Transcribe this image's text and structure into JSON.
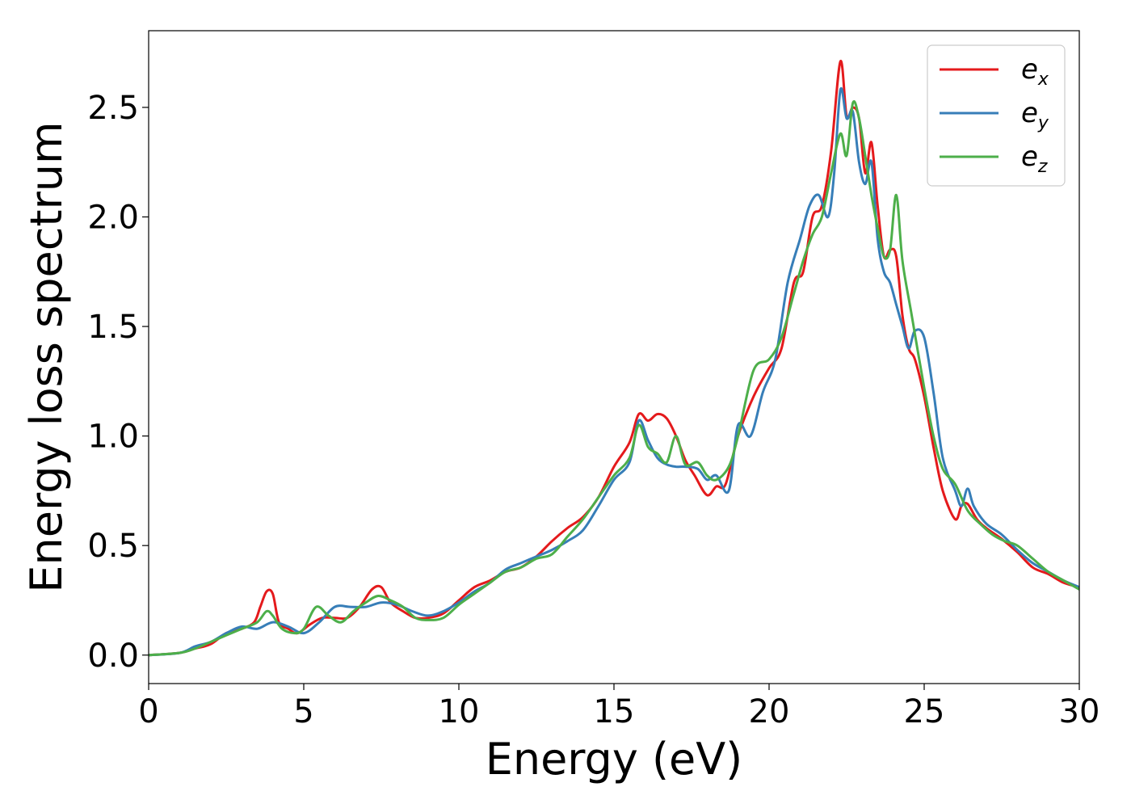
{
  "chart_data": {
    "type": "line",
    "title": "",
    "xlabel": "Energy (eV)",
    "ylabel": "Energy loss spectrum",
    "xlim": [
      0,
      30
    ],
    "ylim": [
      -0.13,
      2.85
    ],
    "xticks": [
      0,
      5,
      10,
      15,
      20,
      25,
      30
    ],
    "xtick_labels": [
      "0",
      "5",
      "10",
      "15",
      "20",
      "25",
      "30"
    ],
    "yticks": [
      0.0,
      0.5,
      1.0,
      1.5,
      2.0,
      2.5
    ],
    "ytick_labels": [
      "0.0",
      "0.5",
      "1.0",
      "1.5",
      "2.0",
      "2.5"
    ],
    "grid": false,
    "legend_position": "upper right",
    "series": [
      {
        "name": "e_x",
        "label_main": "e",
        "label_sub": "x",
        "color": "#e41a1c",
        "x": [
          0,
          1,
          1.5,
          2,
          2.5,
          3,
          3.4,
          3.6,
          3.8,
          4.0,
          4.2,
          4.5,
          4.8,
          5.2,
          5.6,
          6.0,
          6.4,
          6.8,
          7.2,
          7.5,
          7.8,
          8.2,
          8.6,
          9.0,
          9.5,
          10,
          10.5,
          11,
          11.5,
          12,
          12.5,
          13,
          13.5,
          14,
          14.5,
          15,
          15.5,
          15.8,
          16.1,
          16.4,
          16.7,
          17.0,
          17.3,
          17.6,
          18.0,
          18.3,
          18.6,
          19.0,
          19.5,
          20,
          20.4,
          20.8,
          21.1,
          21.4,
          21.7,
          22.0,
          22.3,
          22.5,
          22.7,
          22.9,
          23.1,
          23.3,
          23.5,
          23.7,
          23.9,
          24.1,
          24.3,
          24.5,
          24.7,
          25,
          25.3,
          25.6,
          26,
          26.2,
          26.4,
          26.7,
          27,
          27.5,
          28,
          28.5,
          29,
          29.5,
          30
        ],
        "y": [
          0,
          0.01,
          0.03,
          0.05,
          0.1,
          0.12,
          0.15,
          0.22,
          0.29,
          0.28,
          0.15,
          0.12,
          0.1,
          0.14,
          0.17,
          0.17,
          0.17,
          0.22,
          0.3,
          0.31,
          0.24,
          0.2,
          0.17,
          0.17,
          0.19,
          0.25,
          0.31,
          0.34,
          0.38,
          0.4,
          0.45,
          0.52,
          0.58,
          0.63,
          0.72,
          0.86,
          0.97,
          1.1,
          1.07,
          1.1,
          1.08,
          1.0,
          0.89,
          0.82,
          0.73,
          0.77,
          0.78,
          1.0,
          1.18,
          1.31,
          1.4,
          1.7,
          1.75,
          2.0,
          2.05,
          2.3,
          2.71,
          2.46,
          2.5,
          2.45,
          2.2,
          2.34,
          2.05,
          1.82,
          1.85,
          1.82,
          1.55,
          1.4,
          1.35,
          1.18,
          0.95,
          0.75,
          0.62,
          0.68,
          0.69,
          0.62,
          0.58,
          0.53,
          0.47,
          0.4,
          0.37,
          0.33,
          0.31
        ]
      },
      {
        "name": "e_y",
        "label_main": "e",
        "label_sub": "y",
        "color": "#377eb8",
        "x": [
          0,
          1,
          1.5,
          2,
          2.5,
          3,
          3.5,
          4.0,
          4.5,
          5.0,
          5.5,
          6.0,
          6.5,
          7.0,
          7.5,
          8.0,
          8.5,
          9.0,
          9.5,
          10,
          10.5,
          11,
          11.5,
          12,
          12.5,
          13,
          13.5,
          14,
          14.5,
          15,
          15.5,
          15.8,
          16.1,
          16.4,
          16.7,
          17.0,
          17.3,
          17.7,
          18.0,
          18.3,
          18.7,
          19.0,
          19.4,
          19.8,
          20.2,
          20.6,
          21.0,
          21.3,
          21.6,
          21.9,
          22.1,
          22.3,
          22.5,
          22.7,
          22.9,
          23.1,
          23.3,
          23.5,
          23.7,
          23.9,
          24.1,
          24.3,
          24.5,
          24.7,
          25.0,
          25.3,
          25.6,
          26.0,
          26.2,
          26.4,
          26.6,
          27,
          27.5,
          28,
          28.5,
          29,
          29.5,
          30
        ],
        "y": [
          0,
          0.01,
          0.04,
          0.06,
          0.1,
          0.13,
          0.12,
          0.15,
          0.13,
          0.1,
          0.15,
          0.22,
          0.22,
          0.22,
          0.24,
          0.23,
          0.2,
          0.18,
          0.2,
          0.24,
          0.29,
          0.33,
          0.39,
          0.42,
          0.45,
          0.48,
          0.52,
          0.57,
          0.68,
          0.8,
          0.88,
          1.07,
          0.98,
          0.9,
          0.87,
          0.86,
          0.86,
          0.85,
          0.8,
          0.82,
          0.75,
          1.05,
          1.0,
          1.2,
          1.35,
          1.7,
          1.9,
          2.05,
          2.1,
          2.0,
          2.2,
          2.58,
          2.45,
          2.48,
          2.25,
          2.15,
          2.25,
          1.9,
          1.75,
          1.7,
          1.6,
          1.5,
          1.4,
          1.48,
          1.45,
          1.2,
          0.9,
          0.75,
          0.68,
          0.76,
          0.68,
          0.6,
          0.55,
          0.48,
          0.42,
          0.38,
          0.34,
          0.31
        ]
      },
      {
        "name": "e_z",
        "label_main": "e",
        "label_sub": "z",
        "color": "#4daf4a",
        "x": [
          0,
          1,
          1.5,
          2,
          2.5,
          3,
          3.5,
          3.8,
          4.0,
          4.3,
          4.7,
          5.0,
          5.4,
          5.8,
          6.2,
          6.6,
          7.0,
          7.4,
          7.8,
          8.2,
          8.6,
          9.0,
          9.5,
          10,
          10.5,
          11,
          11.5,
          12,
          12.5,
          13,
          13.5,
          14,
          14.5,
          15,
          15.5,
          15.8,
          16.1,
          16.4,
          16.7,
          17.0,
          17.3,
          17.7,
          18.0,
          18.3,
          18.7,
          19.0,
          19.5,
          20,
          20.4,
          20.8,
          21.1,
          21.4,
          21.7,
          22.0,
          22.3,
          22.5,
          22.7,
          22.9,
          23.1,
          23.3,
          23.5,
          23.7,
          23.9,
          24.1,
          24.3,
          24.6,
          25.0,
          25.3,
          25.6,
          26.0,
          26.4,
          26.8,
          27.2,
          27.6,
          28,
          28.5,
          29,
          29.5,
          30
        ],
        "y": [
          0,
          0.01,
          0.03,
          0.06,
          0.09,
          0.12,
          0.15,
          0.2,
          0.18,
          0.12,
          0.1,
          0.12,
          0.22,
          0.18,
          0.15,
          0.2,
          0.24,
          0.27,
          0.25,
          0.22,
          0.17,
          0.16,
          0.17,
          0.23,
          0.28,
          0.33,
          0.38,
          0.4,
          0.44,
          0.46,
          0.54,
          0.62,
          0.72,
          0.82,
          0.9,
          1.05,
          0.95,
          0.92,
          0.88,
          1.0,
          0.87,
          0.88,
          0.82,
          0.8,
          0.86,
          1.0,
          1.3,
          1.35,
          1.45,
          1.65,
          1.8,
          1.92,
          2.0,
          2.2,
          2.38,
          2.28,
          2.52,
          2.45,
          2.28,
          2.1,
          1.95,
          1.82,
          1.85,
          2.1,
          1.8,
          1.55,
          1.22,
          1.0,
          0.85,
          0.78,
          0.66,
          0.6,
          0.55,
          0.52,
          0.5,
          0.44,
          0.38,
          0.34,
          0.3
        ]
      }
    ]
  }
}
